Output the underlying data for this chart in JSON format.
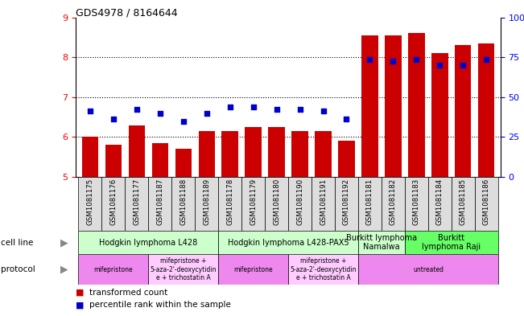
{
  "title": "GDS4978 / 8164644",
  "samples": [
    "GSM1081175",
    "GSM1081176",
    "GSM1081177",
    "GSM1081187",
    "GSM1081188",
    "GSM1081189",
    "GSM1081178",
    "GSM1081179",
    "GSM1081180",
    "GSM1081190",
    "GSM1081191",
    "GSM1081192",
    "GSM1081181",
    "GSM1081182",
    "GSM1081183",
    "GSM1081184",
    "GSM1081185",
    "GSM1081186"
  ],
  "bar_values": [
    6.0,
    5.8,
    6.3,
    5.85,
    5.7,
    6.15,
    6.15,
    6.25,
    6.25,
    6.15,
    6.15,
    5.9,
    8.55,
    8.55,
    8.6,
    8.1,
    8.3,
    8.35
  ],
  "dot_values": [
    6.65,
    6.45,
    6.7,
    6.6,
    6.4,
    6.6,
    6.75,
    6.75,
    6.7,
    6.7,
    6.65,
    6.45,
    7.95,
    7.9,
    7.95,
    7.8,
    7.8,
    7.95
  ],
  "ylim": [
    5,
    9
  ],
  "yticks": [
    5,
    6,
    7,
    8,
    9
  ],
  "y2ticks": [
    0,
    25,
    50,
    75,
    100
  ],
  "y2labels": [
    "0",
    "25",
    "50",
    "75",
    "100%"
  ],
  "bar_color": "#cc0000",
  "dot_color": "#0000cc",
  "cell_line_groups": [
    {
      "label": "Hodgkin lymphoma L428",
      "start": 0,
      "end": 6,
      "color": "#ccffcc"
    },
    {
      "label": "Hodgkin lymphoma L428-PAX5",
      "start": 6,
      "end": 12,
      "color": "#ccffcc"
    },
    {
      "label": "Burkitt lymphoma\nNamalwa",
      "start": 12,
      "end": 14,
      "color": "#ccffcc"
    },
    {
      "label": "Burkitt\nlymphoma Raji",
      "start": 14,
      "end": 18,
      "color": "#66ff66"
    }
  ],
  "protocol_groups": [
    {
      "label": "mifepristone",
      "start": 0,
      "end": 3,
      "color": "#ee88ee"
    },
    {
      "label": "mifepristone +\n5-aza-2'-deoxycytidin\ne + trichostatin A",
      "start": 3,
      "end": 6,
      "color": "#ffccff"
    },
    {
      "label": "mifepristone",
      "start": 6,
      "end": 9,
      "color": "#ee88ee"
    },
    {
      "label": "mifepristone +\n5-aza-2'-deoxycytidin\ne + trichostatin A",
      "start": 9,
      "end": 12,
      "color": "#ffccff"
    },
    {
      "label": "untreated",
      "start": 12,
      "end": 18,
      "color": "#ee88ee"
    }
  ],
  "legend_items": [
    {
      "label": "transformed count",
      "color": "#cc0000"
    },
    {
      "label": "percentile rank within the sample",
      "color": "#0000cc"
    }
  ],
  "bg_color": "#ffffff",
  "sample_label_bg": "#dddddd"
}
